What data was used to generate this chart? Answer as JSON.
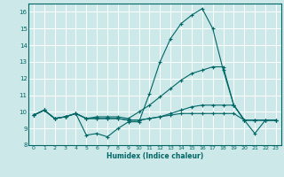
{
  "title": "",
  "xlabel": "Humidex (Indice chaleur)",
  "xlim": [
    -0.5,
    23.5
  ],
  "ylim": [
    8,
    16.5
  ],
  "yticks": [
    8,
    9,
    10,
    11,
    12,
    13,
    14,
    15,
    16
  ],
  "xticks": [
    0,
    1,
    2,
    3,
    4,
    5,
    6,
    7,
    8,
    9,
    10,
    11,
    12,
    13,
    14,
    15,
    16,
    17,
    18,
    19,
    20,
    21,
    22,
    23
  ],
  "bg_color": "#cde8e8",
  "line_color": "#006666",
  "grid_color": "#ffffff",
  "lines": [
    {
      "x": [
        0,
        1,
        2,
        3,
        4,
        5,
        6,
        7,
        8,
        9,
        10,
        11,
        12,
        13,
        14,
        15,
        16,
        17,
        18,
        19,
        20,
        21,
        22,
        23
      ],
      "y": [
        9.8,
        10.1,
        9.6,
        9.7,
        9.9,
        8.6,
        8.7,
        8.5,
        9.0,
        9.4,
        9.4,
        11.1,
        13.0,
        14.4,
        15.3,
        15.8,
        16.2,
        15.0,
        12.5,
        10.4,
        9.5,
        8.7,
        9.5,
        9.5
      ]
    },
    {
      "x": [
        0,
        1,
        2,
        3,
        4,
        5,
        6,
        7,
        8,
        9,
        10,
        11,
        12,
        13,
        14,
        15,
        16,
        17,
        18,
        19,
        20,
        21,
        22,
        23
      ],
      "y": [
        9.8,
        10.1,
        9.6,
        9.7,
        9.9,
        9.6,
        9.6,
        9.6,
        9.6,
        9.5,
        9.5,
        9.6,
        9.7,
        9.8,
        9.9,
        9.9,
        9.9,
        9.9,
        9.9,
        9.9,
        9.5,
        9.5,
        9.5,
        9.5
      ]
    },
    {
      "x": [
        0,
        1,
        2,
        3,
        4,
        5,
        6,
        7,
        8,
        9,
        10,
        11,
        12,
        13,
        14,
        15,
        16,
        17,
        18,
        19,
        20,
        21,
        22,
        23
      ],
      "y": [
        9.8,
        10.1,
        9.6,
        9.7,
        9.9,
        9.6,
        9.7,
        9.7,
        9.7,
        9.6,
        10.0,
        10.4,
        10.9,
        11.4,
        11.9,
        12.3,
        12.5,
        12.7,
        12.7,
        10.4,
        9.5,
        9.5,
        9.5,
        9.5
      ]
    },
    {
      "x": [
        0,
        1,
        2,
        3,
        4,
        5,
        6,
        7,
        8,
        9,
        10,
        11,
        12,
        13,
        14,
        15,
        16,
        17,
        18,
        19,
        20,
        21,
        22,
        23
      ],
      "y": [
        9.8,
        10.1,
        9.6,
        9.7,
        9.9,
        9.6,
        9.6,
        9.6,
        9.6,
        9.5,
        9.5,
        9.6,
        9.7,
        9.9,
        10.1,
        10.3,
        10.4,
        10.4,
        10.4,
        10.4,
        9.5,
        9.5,
        9.5,
        9.5
      ]
    }
  ]
}
